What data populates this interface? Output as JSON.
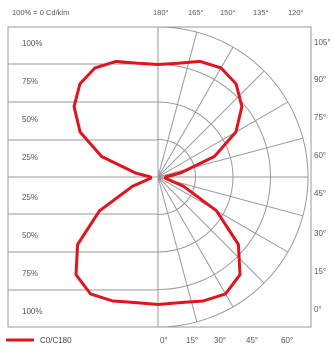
{
  "chart_data": {
    "type": "polar",
    "header_left": "100% = 0 Cd/klm",
    "header_angles": [
      "180°",
      "165°",
      "150°",
      "135°",
      "120°"
    ],
    "left_scale_labels": [
      "100%",
      "75%",
      "50%",
      "25%",
      "25%",
      "50%",
      "75%",
      "100%"
    ],
    "right_angle_labels": [
      "105°",
      "90°",
      "75°",
      "60°",
      "45°",
      "30°",
      "15°",
      "0°"
    ],
    "bottom_angle_labels": [
      "0°",
      "15°",
      "30°",
      "45°",
      "60°"
    ],
    "radial_max": 100,
    "series": [
      {
        "name": "C0/C180",
        "color": "#e0141e",
        "points": [
          {
            "angle": 0,
            "value": 85
          },
          {
            "angle": 10,
            "value": 85
          },
          {
            "angle": 20,
            "value": 88
          },
          {
            "angle": 30,
            "value": 90
          },
          {
            "angle": 40,
            "value": 85
          },
          {
            "angle": 50,
            "value": 70
          },
          {
            "angle": 60,
            "value": 45
          },
          {
            "angle": 70,
            "value": 18
          },
          {
            "angle": 80,
            "value": 5
          },
          {
            "angle": 90,
            "value": 5
          },
          {
            "angle": 100,
            "value": 15
          },
          {
            "angle": 110,
            "value": 40
          },
          {
            "angle": 120,
            "value": 60
          },
          {
            "angle": 130,
            "value": 73
          },
          {
            "angle": 140,
            "value": 81
          },
          {
            "angle": 150,
            "value": 84
          },
          {
            "angle": 160,
            "value": 82
          },
          {
            "angle": 170,
            "value": 77
          },
          {
            "angle": 180,
            "value": 75
          }
        ]
      }
    ]
  }
}
